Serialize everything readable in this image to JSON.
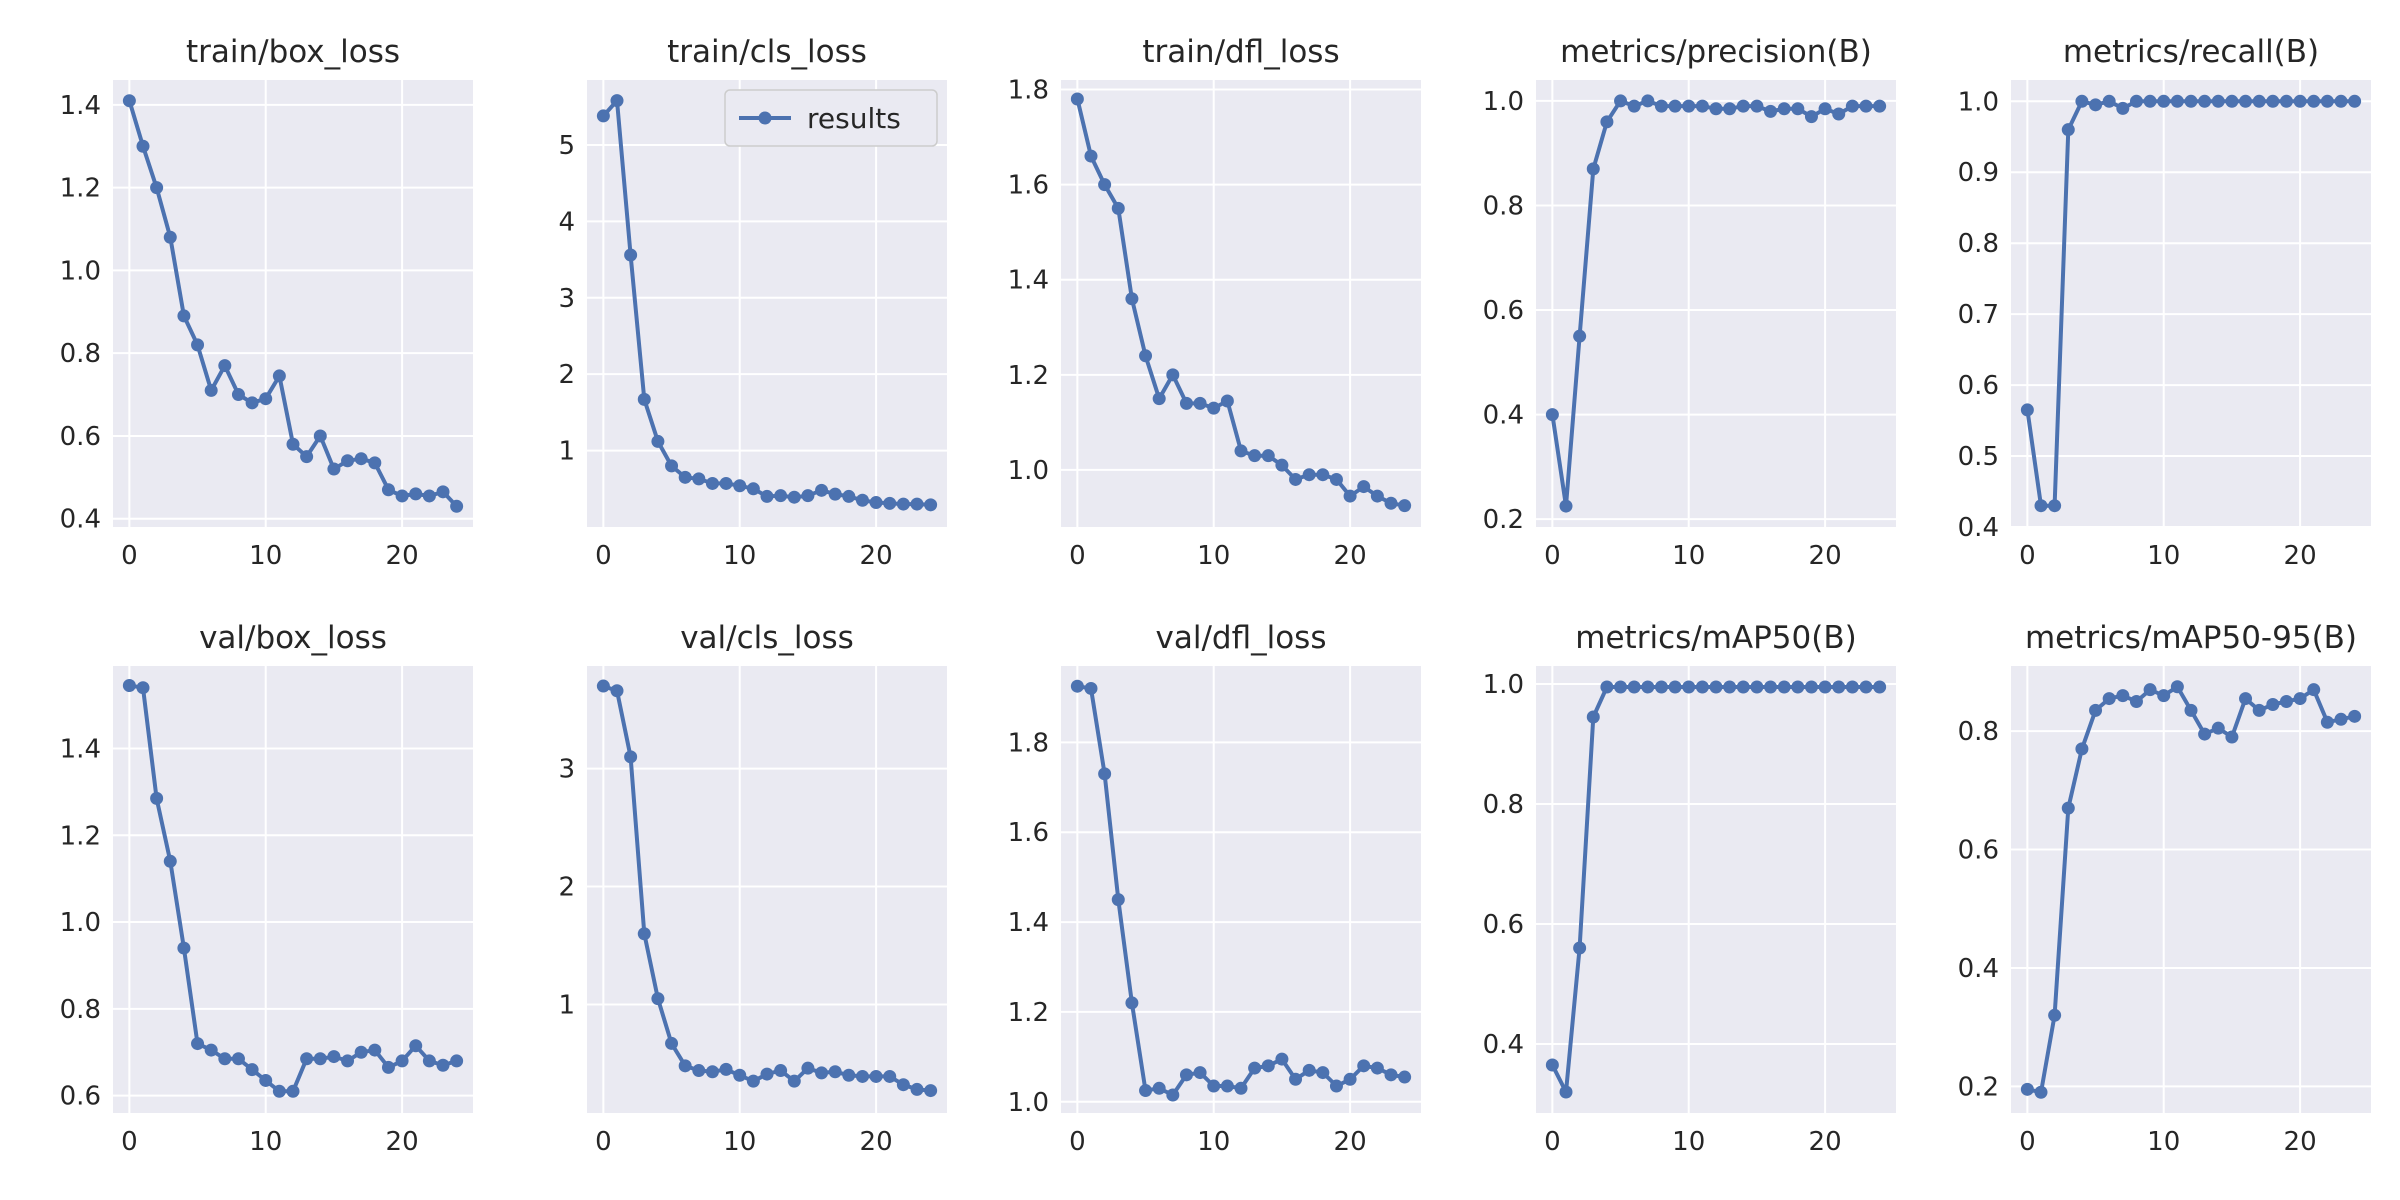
{
  "style": {
    "background": "#ffffff",
    "axes_face": "#eaeaf2",
    "grid_color": "#ffffff",
    "series_color": "#4c72b0",
    "text_color": "#262626"
  },
  "legend": {
    "label": "results",
    "placement": "upper-right",
    "panel": 1
  },
  "chart_data": [
    {
      "type": "line",
      "title": "train/box_loss",
      "grid": true,
      "x": [
        0,
        1,
        2,
        3,
        4,
        5,
        6,
        7,
        8,
        9,
        10,
        11,
        12,
        13,
        14,
        15,
        16,
        17,
        18,
        19,
        20,
        21,
        22,
        23,
        24
      ],
      "series": [
        {
          "name": "results",
          "values": [
            1.41,
            1.3,
            1.2,
            1.08,
            0.89,
            0.82,
            0.71,
            0.77,
            0.7,
            0.68,
            0.69,
            0.745,
            0.58,
            0.55,
            0.6,
            0.52,
            0.54,
            0.545,
            0.535,
            0.47,
            0.455,
            0.46,
            0.455,
            0.465,
            0.43
          ]
        }
      ],
      "xlim": [
        -1.2,
        25.2
      ],
      "ylim": [
        0.38,
        1.46
      ],
      "xticks": [
        0,
        10,
        20
      ],
      "xtick_labels": [
        "0",
        "10",
        "20"
      ],
      "yticks": [
        0.4,
        0.6,
        0.8,
        1.0,
        1.2,
        1.4
      ],
      "ytick_labels": [
        "0.4",
        "0.6",
        "0.8",
        "1.0",
        "1.2",
        "1.4"
      ]
    },
    {
      "type": "line",
      "title": "train/cls_loss",
      "grid": true,
      "x": [
        0,
        1,
        2,
        3,
        4,
        5,
        6,
        7,
        8,
        9,
        10,
        11,
        12,
        13,
        14,
        15,
        16,
        17,
        18,
        19,
        20,
        21,
        22,
        23,
        24
      ],
      "series": [
        {
          "name": "results",
          "values": [
            5.38,
            5.58,
            3.56,
            1.67,
            1.12,
            0.8,
            0.65,
            0.63,
            0.57,
            0.57,
            0.54,
            0.5,
            0.4,
            0.41,
            0.39,
            0.41,
            0.48,
            0.43,
            0.4,
            0.35,
            0.32,
            0.31,
            0.3,
            0.3,
            0.29
          ]
        }
      ],
      "xlim": [
        -1.2,
        25.2
      ],
      "ylim": [
        0.0,
        5.85
      ],
      "xticks": [
        0,
        10,
        20
      ],
      "xtick_labels": [
        "0",
        "10",
        "20"
      ],
      "yticks": [
        1,
        2,
        3,
        4,
        5
      ],
      "ytick_labels": [
        "1",
        "2",
        "3",
        "4",
        "5"
      ]
    },
    {
      "type": "line",
      "title": "train/dfl_loss",
      "grid": true,
      "x": [
        0,
        1,
        2,
        3,
        4,
        5,
        6,
        7,
        8,
        9,
        10,
        11,
        12,
        13,
        14,
        15,
        16,
        17,
        18,
        19,
        20,
        21,
        22,
        23,
        24
      ],
      "series": [
        {
          "name": "results",
          "values": [
            1.78,
            1.66,
            1.6,
            1.55,
            1.36,
            1.24,
            1.15,
            1.2,
            1.14,
            1.14,
            1.13,
            1.145,
            1.04,
            1.03,
            1.03,
            1.01,
            0.98,
            0.99,
            0.99,
            0.98,
            0.945,
            0.965,
            0.945,
            0.93,
            0.925
          ]
        }
      ],
      "xlim": [
        -1.2,
        25.2
      ],
      "ylim": [
        0.88,
        1.82
      ],
      "xticks": [
        0,
        10,
        20
      ],
      "xtick_labels": [
        "0",
        "10",
        "20"
      ],
      "yticks": [
        1.0,
        1.2,
        1.4,
        1.6,
        1.8
      ],
      "ytick_labels": [
        "1.0",
        "1.2",
        "1.4",
        "1.6",
        "1.8"
      ]
    },
    {
      "type": "line",
      "title": "metrics/precision(B)",
      "grid": true,
      "x": [
        0,
        1,
        2,
        3,
        4,
        5,
        6,
        7,
        8,
        9,
        10,
        11,
        12,
        13,
        14,
        15,
        16,
        17,
        18,
        19,
        20,
        21,
        22,
        23,
        24
      ],
      "series": [
        {
          "name": "results",
          "values": [
            0.4,
            0.225,
            0.55,
            0.87,
            0.96,
            1.0,
            0.99,
            1.0,
            0.99,
            0.99,
            0.99,
            0.99,
            0.985,
            0.985,
            0.99,
            0.99,
            0.98,
            0.985,
            0.985,
            0.97,
            0.985,
            0.975,
            0.99,
            0.99,
            0.99
          ]
        }
      ],
      "xlim": [
        -1.2,
        25.2
      ],
      "ylim": [
        0.185,
        1.04
      ],
      "xticks": [
        0,
        10,
        20
      ],
      "xtick_labels": [
        "0",
        "10",
        "20"
      ],
      "yticks": [
        0.2,
        0.4,
        0.6,
        0.8,
        1.0
      ],
      "ytick_labels": [
        "0.2",
        "0.4",
        "0.6",
        "0.8",
        "1.0"
      ]
    },
    {
      "type": "line",
      "title": "metrics/recall(B)",
      "grid": true,
      "x": [
        0,
        1,
        2,
        3,
        4,
        5,
        6,
        7,
        8,
        9,
        10,
        11,
        12,
        13,
        14,
        15,
        16,
        17,
        18,
        19,
        20,
        21,
        22,
        23,
        24
      ],
      "series": [
        {
          "name": "results",
          "values": [
            0.565,
            0.43,
            0.43,
            0.96,
            1.0,
            0.995,
            1.0,
            0.99,
            1.0,
            1.0,
            1.0,
            1.0,
            1.0,
            1.0,
            1.0,
            1.0,
            1.0,
            1.0,
            1.0,
            1.0,
            1.0,
            1.0,
            1.0,
            1.0,
            1.0
          ]
        }
      ],
      "xlim": [
        -1.2,
        25.2
      ],
      "ylim": [
        0.4,
        1.03
      ],
      "xticks": [
        0,
        10,
        20
      ],
      "xtick_labels": [
        "0",
        "10",
        "20"
      ],
      "yticks": [
        0.4,
        0.5,
        0.6,
        0.7,
        0.8,
        0.9,
        1.0
      ],
      "ytick_labels": [
        "0.4",
        "0.5",
        "0.6",
        "0.7",
        "0.8",
        "0.9",
        "1.0"
      ]
    },
    {
      "type": "line",
      "title": "val/box_loss",
      "grid": true,
      "x": [
        0,
        1,
        2,
        3,
        4,
        5,
        6,
        7,
        8,
        9,
        10,
        11,
        12,
        13,
        14,
        15,
        16,
        17,
        18,
        19,
        20,
        21,
        22,
        23,
        24
      ],
      "series": [
        {
          "name": "results",
          "values": [
            1.545,
            1.54,
            1.285,
            1.14,
            0.94,
            0.72,
            0.705,
            0.685,
            0.685,
            0.66,
            0.635,
            0.61,
            0.61,
            0.685,
            0.685,
            0.69,
            0.68,
            0.7,
            0.705,
            0.665,
            0.68,
            0.715,
            0.68,
            0.67,
            0.68
          ]
        }
      ],
      "xlim": [
        -1.2,
        25.2
      ],
      "ylim": [
        0.56,
        1.59
      ],
      "xticks": [
        0,
        10,
        20
      ],
      "xtick_labels": [
        "0",
        "10",
        "20"
      ],
      "yticks": [
        0.6,
        0.8,
        1.0,
        1.2,
        1.4
      ],
      "ytick_labels": [
        "0.6",
        "0.8",
        "1.0",
        "1.2",
        "1.4"
      ]
    },
    {
      "type": "line",
      "title": "val/cls_loss",
      "grid": true,
      "x": [
        0,
        1,
        2,
        3,
        4,
        5,
        6,
        7,
        8,
        9,
        10,
        11,
        12,
        13,
        14,
        15,
        16,
        17,
        18,
        19,
        20,
        21,
        22,
        23,
        24
      ],
      "series": [
        {
          "name": "results",
          "values": [
            3.7,
            3.66,
            3.1,
            1.6,
            1.05,
            0.67,
            0.48,
            0.44,
            0.43,
            0.45,
            0.4,
            0.35,
            0.41,
            0.44,
            0.35,
            0.46,
            0.42,
            0.43,
            0.4,
            0.39,
            0.39,
            0.39,
            0.32,
            0.28,
            0.27
          ]
        }
      ],
      "xlim": [
        -1.2,
        25.2
      ],
      "ylim": [
        0.08,
        3.87
      ],
      "xticks": [
        0,
        10,
        20
      ],
      "xtick_labels": [
        "0",
        "10",
        "20"
      ],
      "yticks": [
        1,
        2,
        3
      ],
      "ytick_labels": [
        "1",
        "2",
        "3"
      ]
    },
    {
      "type": "line",
      "title": "val/dfl_loss",
      "grid": true,
      "x": [
        0,
        1,
        2,
        3,
        4,
        5,
        6,
        7,
        8,
        9,
        10,
        11,
        12,
        13,
        14,
        15,
        16,
        17,
        18,
        19,
        20,
        21,
        22,
        23,
        24
      ],
      "series": [
        {
          "name": "results",
          "values": [
            1.925,
            1.92,
            1.73,
            1.45,
            1.22,
            1.025,
            1.03,
            1.015,
            1.06,
            1.065,
            1.035,
            1.035,
            1.03,
            1.075,
            1.08,
            1.095,
            1.05,
            1.07,
            1.065,
            1.035,
            1.05,
            1.08,
            1.075,
            1.06,
            1.055
          ]
        }
      ],
      "xlim": [
        -1.2,
        25.2
      ],
      "ylim": [
        0.975,
        1.97
      ],
      "xticks": [
        0,
        10,
        20
      ],
      "xtick_labels": [
        "0",
        "10",
        "20"
      ],
      "yticks": [
        1.0,
        1.2,
        1.4,
        1.6,
        1.8
      ],
      "ytick_labels": [
        "1.0",
        "1.2",
        "1.4",
        "1.6",
        "1.8"
      ]
    },
    {
      "type": "line",
      "title": "metrics/mAP50(B)",
      "grid": true,
      "x": [
        0,
        1,
        2,
        3,
        4,
        5,
        6,
        7,
        8,
        9,
        10,
        11,
        12,
        13,
        14,
        15,
        16,
        17,
        18,
        19,
        20,
        21,
        22,
        23,
        24
      ],
      "series": [
        {
          "name": "results",
          "values": [
            0.365,
            0.32,
            0.56,
            0.945,
            0.995,
            0.995,
            0.995,
            0.995,
            0.995,
            0.995,
            0.995,
            0.995,
            0.995,
            0.995,
            0.995,
            0.995,
            0.995,
            0.995,
            0.995,
            0.995,
            0.995,
            0.995,
            0.995,
            0.995,
            0.995
          ]
        }
      ],
      "xlim": [
        -1.2,
        25.2
      ],
      "ylim": [
        0.285,
        1.03
      ],
      "xticks": [
        0,
        10,
        20
      ],
      "xtick_labels": [
        "0",
        "10",
        "20"
      ],
      "yticks": [
        0.4,
        0.6,
        0.8,
        1.0
      ],
      "ytick_labels": [
        "0.4",
        "0.6",
        "0.8",
        "1.0"
      ]
    },
    {
      "type": "line",
      "title": "metrics/mAP50-95(B)",
      "grid": true,
      "x": [
        0,
        1,
        2,
        3,
        4,
        5,
        6,
        7,
        8,
        9,
        10,
        11,
        12,
        13,
        14,
        15,
        16,
        17,
        18,
        19,
        20,
        21,
        22,
        23,
        24
      ],
      "series": [
        {
          "name": "results",
          "values": [
            0.195,
            0.19,
            0.32,
            0.67,
            0.77,
            0.835,
            0.855,
            0.86,
            0.85,
            0.87,
            0.86,
            0.875,
            0.835,
            0.795,
            0.805,
            0.79,
            0.855,
            0.835,
            0.845,
            0.85,
            0.855,
            0.87,
            0.815,
            0.82,
            0.825
          ]
        }
      ],
      "xlim": [
        -1.2,
        25.2
      ],
      "ylim": [
        0.155,
        0.91
      ],
      "xticks": [
        0,
        10,
        20
      ],
      "xtick_labels": [
        "0",
        "10",
        "20"
      ],
      "yticks": [
        0.2,
        0.4,
        0.6,
        0.8
      ],
      "ytick_labels": [
        "0.2",
        "0.4",
        "0.6",
        "0.8"
      ]
    }
  ]
}
